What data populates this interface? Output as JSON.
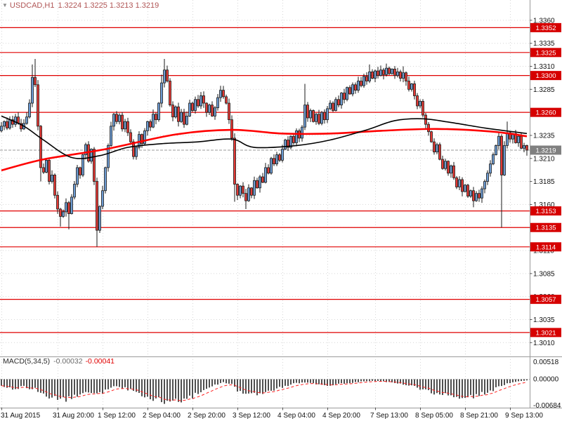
{
  "chart_window": {
    "symbol": "USDCAD,H1",
    "ohlc": "1.3224 1.3225 1.3213 1.3219"
  },
  "colors": {
    "up_candle": "#6d9bd2",
    "down_candle": "#e53935",
    "candle_outline": "#1a1a1a",
    "ma_fast_black": "#000000",
    "ma_slow_red": "#ff0000",
    "level_line": "#e00000",
    "level_tag_bg": "#d60000",
    "current_tag_bg": "#808080",
    "grid": "#d6d6d6",
    "axis_line": "#9a9a9a",
    "macd_bar": "#4f4f4f",
    "macd_signal": "#ff2020",
    "tick_text": "#111111"
  },
  "chart_data": {
    "type": "candlestick",
    "title": "USDCAD H1 with two moving averages, horizontal support/resistance levels and MACD(5,34,5)",
    "symbol": "USDCAD",
    "timeframe": "H1",
    "price_axis": {
      "max": 1.3382,
      "min": 1.2995,
      "current": 1.3219,
      "current_label": "1.3219",
      "ticks": [
        1.336,
        1.3335,
        1.331,
        1.3285,
        1.326,
        1.3235,
        1.321,
        1.3185,
        1.316,
        1.3135,
        1.311,
        1.3085,
        1.306,
        1.3035,
        1.301
      ]
    },
    "levels": [
      1.3352,
      1.3325,
      1.33,
      1.326,
      1.3153,
      1.3135,
      1.3114,
      1.3057,
      1.3021
    ],
    "time_axis": {
      "ticks": [
        {
          "bar": 0,
          "label": "31 Aug 2015"
        },
        {
          "bar": 20,
          "label": "31 Aug 20:00"
        },
        {
          "bar": 36,
          "label": "1 Sep 12:00"
        },
        {
          "bar": 52,
          "label": "2 Sep 04:00"
        },
        {
          "bar": 68,
          "label": "2 Sep 20:00"
        },
        {
          "bar": 84,
          "label": "3 Sep 12:00"
        },
        {
          "bar": 100,
          "label": "4 Sep 04:00"
        },
        {
          "bar": 116,
          "label": "4 Sep 20:00"
        },
        {
          "bar": 133,
          "label": "7 Sep 13:00"
        },
        {
          "bar": 149,
          "label": "8 Sep 05:00"
        },
        {
          "bar": 165,
          "label": "8 Sep 21:00"
        },
        {
          "bar": 181,
          "label": "9 Sep 13:00"
        }
      ]
    },
    "first_open": 1.324,
    "closes": [
      1.3245,
      1.325,
      1.3243,
      1.3252,
      1.3247,
      1.3255,
      1.3248,
      1.3242,
      1.3248,
      1.3255,
      1.327,
      1.3298,
      1.329,
      1.3245,
      1.32,
      1.3195,
      1.3208,
      1.3185,
      1.3192,
      1.317,
      1.3155,
      1.3147,
      1.3152,
      1.3162,
      1.315,
      1.3168,
      1.3182,
      1.32,
      1.3192,
      1.3214,
      1.3225,
      1.3207,
      1.322,
      1.3185,
      1.3132,
      1.3158,
      1.3175,
      1.32,
      1.3224,
      1.3245,
      1.3258,
      1.325,
      1.3257,
      1.3242,
      1.325,
      1.3238,
      1.3228,
      1.3212,
      1.3222,
      1.3236,
      1.3226,
      1.324,
      1.325,
      1.3244,
      1.3258,
      1.3252,
      1.327,
      1.3292,
      1.3306,
      1.3294,
      1.3268,
      1.3255,
      1.3266,
      1.325,
      1.326,
      1.3247,
      1.3256,
      1.327,
      1.3262,
      1.3274,
      1.3267,
      1.3278,
      1.327,
      1.326,
      1.3268,
      1.3256,
      1.3265,
      1.3276,
      1.3284,
      1.3277,
      1.327,
      1.3252,
      1.3232,
      1.3182,
      1.317,
      1.318,
      1.3172,
      1.3164,
      1.3178,
      1.317,
      1.3186,
      1.3178,
      1.319,
      1.3184,
      1.32,
      1.3194,
      1.321,
      1.3204,
      1.3214,
      1.3208,
      1.322,
      1.323,
      1.3222,
      1.3234,
      1.3227,
      1.324,
      1.3232,
      1.3244,
      1.3268,
      1.3254,
      1.3262,
      1.325,
      1.3258,
      1.3248,
      1.326,
      1.3252,
      1.3264,
      1.327,
      1.3262,
      1.3274,
      1.3268,
      1.3281,
      1.3274,
      1.3287,
      1.328,
      1.329,
      1.3284,
      1.3294,
      1.3289,
      1.3299,
      1.3294,
      1.3304,
      1.3297,
      1.3305,
      1.33,
      1.3306,
      1.3301,
      1.3308,
      1.3302,
      1.3307,
      1.33,
      1.3304,
      1.3297,
      1.3303,
      1.3294,
      1.3285,
      1.3291,
      1.3278,
      1.3267,
      1.3272,
      1.3257,
      1.3247,
      1.3239,
      1.3228,
      1.3217,
      1.3225,
      1.3209,
      1.3199,
      1.3207,
      1.3194,
      1.3202,
      1.3189,
      1.3179,
      1.3187,
      1.3174,
      1.3181,
      1.3169,
      1.3175,
      1.3164,
      1.3172,
      1.3167,
      1.3177,
      1.3185,
      1.3194,
      1.3204,
      1.3214,
      1.3224,
      1.3234,
      1.3192,
      1.3224,
      1.3238,
      1.3231,
      1.3237,
      1.3227,
      1.3234,
      1.3221,
      1.3224,
      1.3219
    ],
    "wick_overrides": {
      "11": {
        "h": 1.3312
      },
      "12": {
        "h": 1.3318
      },
      "14": {
        "l": 1.3185
      },
      "21": {
        "l": 1.3136
      },
      "24": {
        "l": 1.3133
      },
      "34": {
        "l": 1.3114
      },
      "57": {
        "h": 1.3301
      },
      "58": {
        "h": 1.3318
      },
      "83": {
        "l": 1.3163
      },
      "87": {
        "l": 1.3155
      },
      "108": {
        "h": 1.3291
      },
      "131": {
        "h": 1.3312
      },
      "137": {
        "h": 1.3313
      },
      "143": {
        "h": 1.331
      },
      "168": {
        "l": 1.3157
      },
      "178": {
        "l": 1.3135
      },
      "180": {
        "h": 1.325
      },
      "187": {
        "h": 1.3225,
        "l": 1.3213
      }
    },
    "ma_red": [
      [
        0,
        1.3197
      ],
      [
        15,
        1.3209
      ],
      [
        37,
        1.322
      ],
      [
        62,
        1.3236
      ],
      [
        82,
        1.3241
      ],
      [
        100,
        1.3237
      ],
      [
        117,
        1.3237
      ],
      [
        135,
        1.324
      ],
      [
        155,
        1.3242
      ],
      [
        175,
        1.3239
      ],
      [
        187,
        1.3234
      ]
    ],
    "ma_black": [
      [
        0,
        1.3256
      ],
      [
        8,
        1.3245
      ],
      [
        15,
        1.323
      ],
      [
        25,
        1.3211
      ],
      [
        35,
        1.3213
      ],
      [
        45,
        1.3222
      ],
      [
        57,
        1.3226
      ],
      [
        70,
        1.3228
      ],
      [
        82,
        1.3231
      ],
      [
        90,
        1.3222
      ],
      [
        105,
        1.3224
      ],
      [
        117,
        1.323
      ],
      [
        130,
        1.3241
      ],
      [
        140,
        1.3251
      ],
      [
        150,
        1.3253
      ],
      [
        160,
        1.3249
      ],
      [
        172,
        1.3243
      ],
      [
        182,
        1.3239
      ],
      [
        187,
        1.3237
      ]
    ],
    "macd": {
      "label": "MACD(5,34,5)",
      "value": "-0.00032",
      "signal_value": "-0.00041",
      "axis": {
        "max": 0.00518,
        "min": -0.00684,
        "labels": [
          {
            "v": 0.00518,
            "t": "0.00518"
          },
          {
            "v": 0.0,
            "t": "0.00000"
          },
          {
            "v": -0.00684,
            "t": "-0.00684"
          }
        ]
      },
      "anchors": [
        [
          0,
          -0.0016
        ],
        [
          4,
          -0.0024
        ],
        [
          8,
          -0.002
        ],
        [
          12,
          -0.0026
        ],
        [
          15,
          -0.004
        ],
        [
          19,
          -0.0048
        ],
        [
          23,
          -0.0052
        ],
        [
          27,
          -0.0044
        ],
        [
          31,
          -0.0032
        ],
        [
          34,
          -0.0042
        ],
        [
          37,
          -0.003
        ],
        [
          40,
          -0.0018
        ],
        [
          44,
          -0.0024
        ],
        [
          48,
          -0.0034
        ],
        [
          52,
          -0.0046
        ],
        [
          56,
          -0.0052
        ],
        [
          60,
          -0.0062
        ],
        [
          63,
          -0.0058
        ],
        [
          67,
          -0.0048
        ],
        [
          70,
          -0.0038
        ],
        [
          73,
          -0.0026
        ],
        [
          76,
          -0.0016
        ],
        [
          79,
          -0.0008
        ],
        [
          82,
          -0.0014
        ],
        [
          84,
          -0.003
        ],
        [
          88,
          -0.0042
        ],
        [
          92,
          -0.0038
        ],
        [
          96,
          -0.003
        ],
        [
          100,
          -0.002
        ],
        [
          104,
          -0.0012
        ],
        [
          108,
          -0.0008
        ],
        [
          112,
          -0.0012
        ],
        [
          116,
          -0.0016
        ],
        [
          120,
          -0.0012
        ],
        [
          124,
          -0.001
        ],
        [
          128,
          -0.0006
        ],
        [
          132,
          -0.0004
        ],
        [
          136,
          -0.0006
        ],
        [
          140,
          -0.001
        ],
        [
          144,
          -0.0014
        ],
        [
          148,
          -0.0022
        ],
        [
          152,
          -0.0032
        ],
        [
          156,
          -0.004
        ],
        [
          160,
          -0.0044
        ],
        [
          164,
          -0.0048
        ],
        [
          168,
          -0.0044
        ],
        [
          172,
          -0.0036
        ],
        [
          176,
          -0.0024
        ],
        [
          180,
          -0.0012
        ],
        [
          184,
          -0.0006
        ],
        [
          187,
          -0.0003
        ]
      ]
    }
  }
}
